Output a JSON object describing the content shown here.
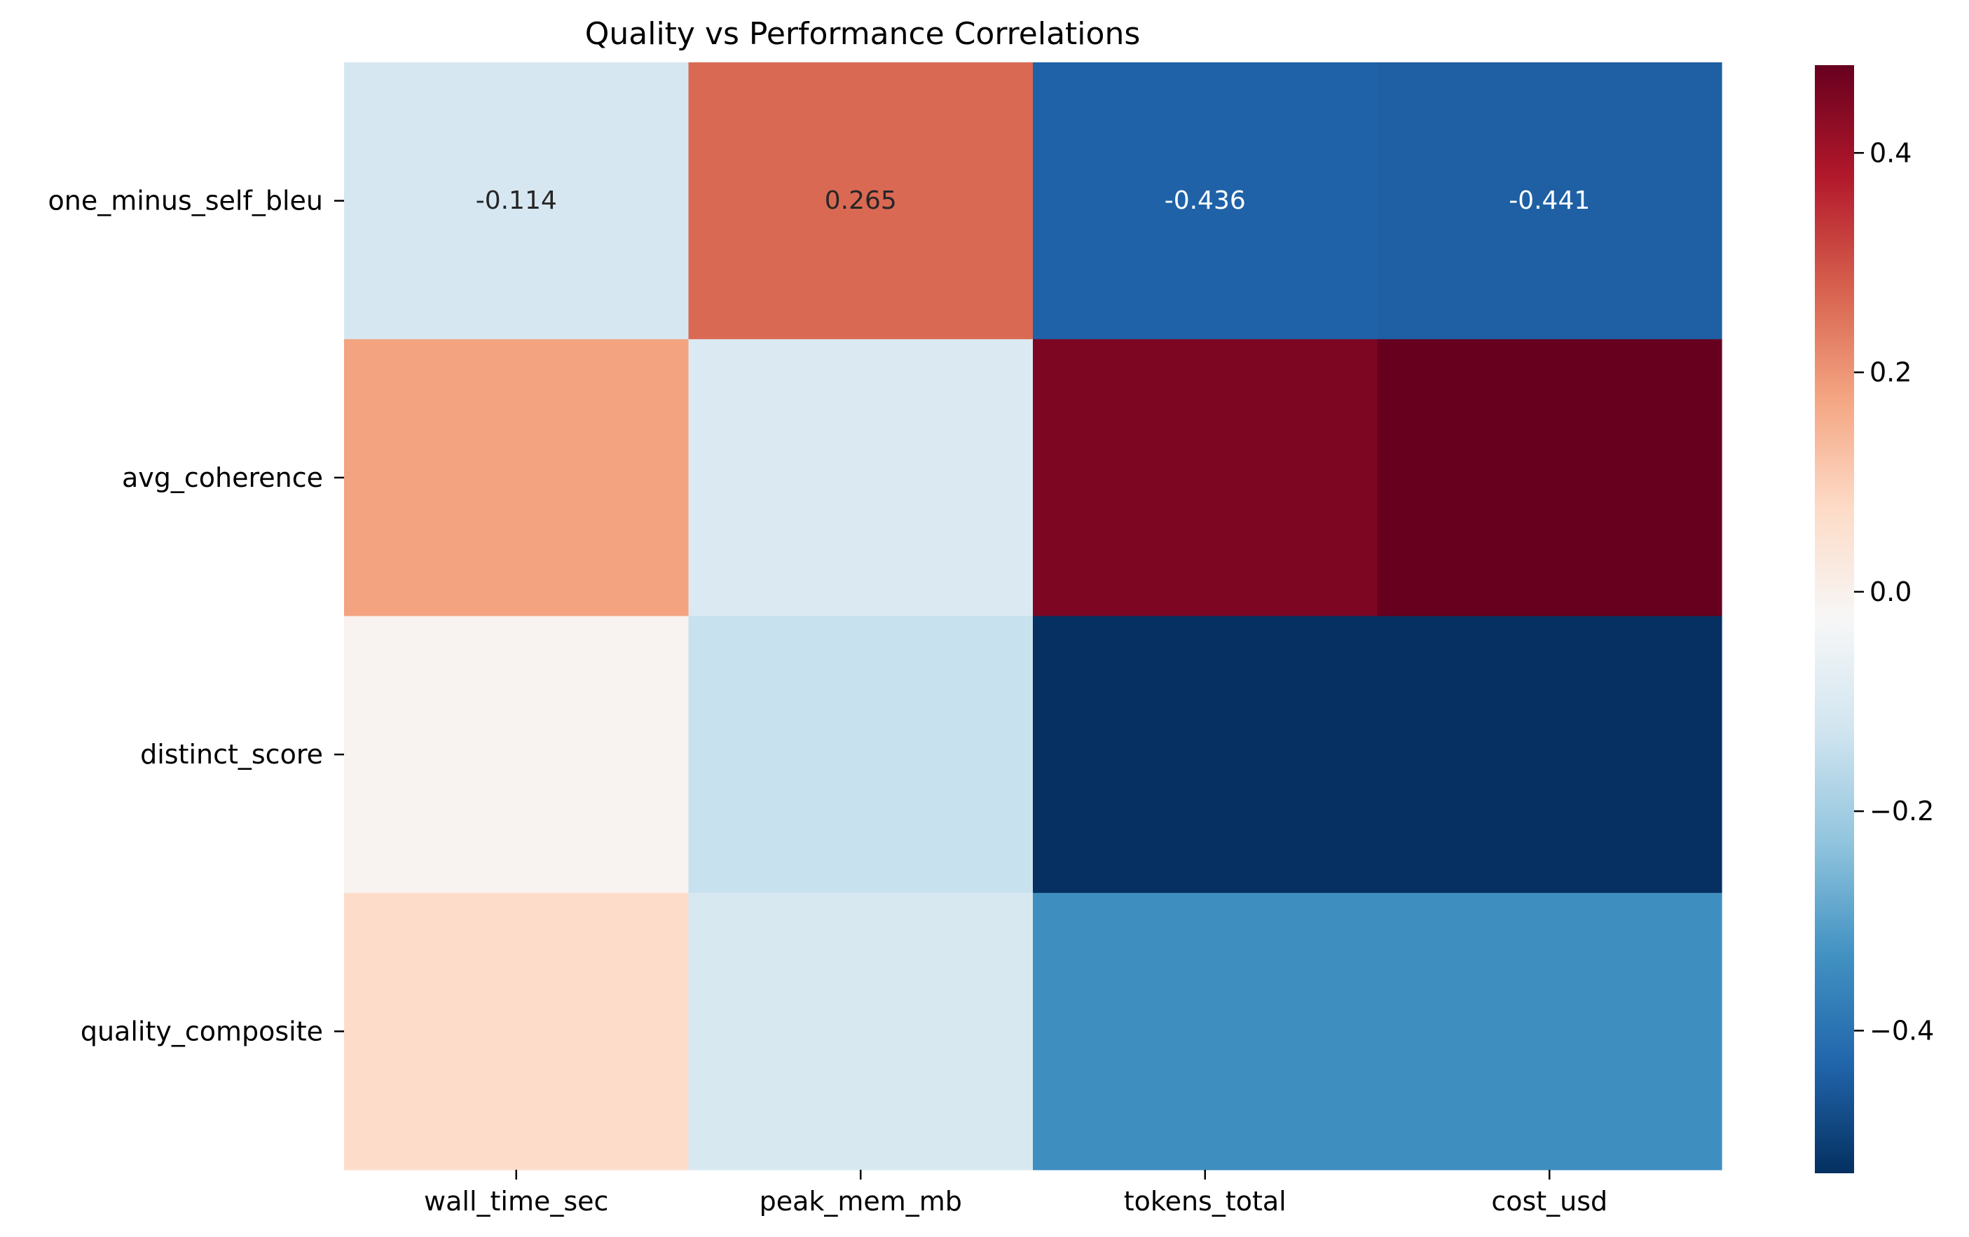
{
  "chart_data": {
    "type": "heatmap",
    "title": "Quality vs Performance Correlations",
    "xlabel": "",
    "ylabel": "",
    "columns": [
      "wall_time_sec",
      "peak_mem_mb",
      "tokens_total",
      "cost_usd"
    ],
    "rows": [
      "one_minus_self_bleu",
      "avg_coherence",
      "distinct_score",
      "quality_composite"
    ],
    "values": [
      [
        -0.114,
        0.265,
        -0.436,
        -0.441
      ],
      [
        0.18,
        -0.1,
        0.45,
        0.48
      ],
      [
        -0.01,
        -0.14,
        -0.53,
        -0.53
      ],
      [
        0.07,
        -0.11,
        -0.34,
        -0.34
      ]
    ],
    "annotations": [
      [
        "-0.114",
        "0.265",
        "-0.436",
        "-0.441"
      ],
      [
        "",
        "",
        "",
        ""
      ],
      [
        "",
        "",
        "",
        ""
      ],
      [
        "",
        "",
        "",
        ""
      ]
    ],
    "colormap": "RdBu_r",
    "vmin": -0.53,
    "vmax": 0.48,
    "colorbar": {
      "ticks": [
        0.4,
        0.2,
        0.0,
        -0.2,
        -0.4
      ],
      "tick_labels": [
        "0.4",
        "0.2",
        "0.0",
        "−0.2",
        "−0.4"
      ]
    },
    "colors": {
      "low": "#053061",
      "mid": "#f7f7f7",
      "high": "#67001f"
    }
  }
}
